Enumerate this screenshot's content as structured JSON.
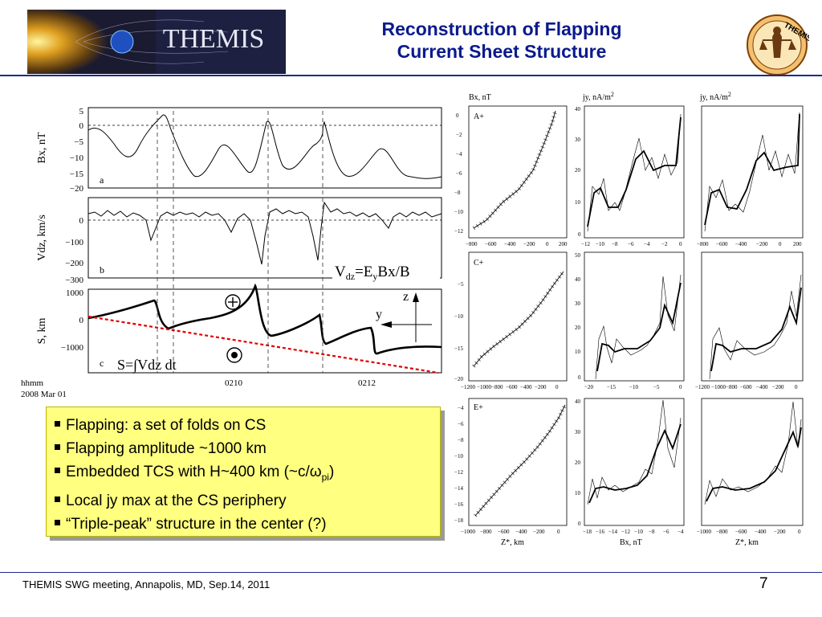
{
  "header": {
    "banner_text": "THEMIS",
    "title_line1": "Reconstruction of Flapping",
    "title_line2": "Current Sheet Structure",
    "logo_text": "THEMIS"
  },
  "left_panels": {
    "a": {
      "ylabel": "Bx, nT",
      "ticks": [
        "5",
        "0",
        "−5",
        "−10",
        "−15",
        "−20"
      ],
      "letter": "a"
    },
    "b": {
      "ylabel": "Vdz, km/s",
      "ticks": [
        "0",
        "−100",
        "−200",
        "−300"
      ],
      "letter": "b",
      "annotation_main": "V",
      "annotation_sub": "dz",
      "annotation_eq": "=E",
      "annotation_sub2": "y",
      "annotation_tail": "Bx/B"
    },
    "c": {
      "ylabel": "S, km",
      "ticks": [
        "1000",
        "0",
        "−1000"
      ],
      "letter": "c",
      "formula": "S=∫Vdz dt",
      "axis_z": "z",
      "axis_y": "y"
    },
    "time_ticks": [
      "0210",
      "0212"
    ],
    "time_label": "hhmm",
    "date_label": "2008 Mar 01"
  },
  "right_panels": {
    "col1_header": "Bx, nT",
    "col2_header": "jy, nA/m",
    "col2_sup": "2",
    "col3_header": "jy, nA/m",
    "col3_sup": "2",
    "row_labels": [
      "A+",
      "C+",
      "E+"
    ],
    "xlabel_col1": "Z*, km",
    "xlabel_col2": "Bx, nT",
    "xlabel_col3": "Z*, km",
    "row1": {
      "col1_x": [
        "−800",
        "−600",
        "−400",
        "−200",
        "0",
        "200"
      ],
      "col1_y": [
        "0",
        "−2",
        "−4",
        "−6",
        "−8",
        "−10",
        "−12"
      ],
      "col2_x": [
        "−12",
        "−10",
        "−8",
        "−6",
        "−4",
        "−2",
        "0"
      ],
      "col2_y": [
        "40",
        "30",
        "20",
        "10",
        "0"
      ],
      "col3_x": [
        "−800",
        "−600",
        "−400",
        "−200",
        "0",
        "200"
      ]
    },
    "row2": {
      "col1_x": [
        "−1200",
        "−1000",
        "−800",
        "−600",
        "−400",
        "−200",
        "0"
      ],
      "col1_y": [
        "−5",
        "−10",
        "−15",
        "−20"
      ],
      "col2_x": [
        "−20",
        "−15",
        "−10",
        "−5",
        "0"
      ],
      "col2_y": [
        "50",
        "40",
        "30",
        "20",
        "10",
        "0"
      ],
      "col3_x": [
        "−1200",
        "−1000",
        "−800",
        "−600",
        "−400",
        "−200",
        "0"
      ]
    },
    "row3": {
      "col1_x": [
        "−1000",
        "−800",
        "−600",
        "−400",
        "−200",
        "0"
      ],
      "col1_y": [
        "−4",
        "−6",
        "−8",
        "−10",
        "−12",
        "−14",
        "−16",
        "−18"
      ],
      "col2_x": [
        "−18",
        "−16",
        "−14",
        "−12",
        "−10",
        "−8",
        "−6",
        "−4"
      ],
      "col2_y": [
        "40",
        "30",
        "20",
        "10",
        "0"
      ],
      "col3_x": [
        "−1000",
        "−800",
        "−600",
        "−400",
        "−200",
        "0"
      ]
    }
  },
  "bullets": {
    "b1": "Flapping: a set of folds on CS",
    "b2": "Flapping amplitude ~1000 km",
    "b3_pre": "Embedded TCS with H~400 km (~c/ω",
    "b3_sub": "pi",
    "b3_post": ")",
    "b4": "Local jy max at the CS periphery",
    "b5": "“Triple-peak” structure in the center (?)"
  },
  "footer": {
    "text": "THEMIS SWG meeting, Annapolis, MD, Sep.14, 2011",
    "page": "7"
  },
  "colors": {
    "title": "#0a1a8c",
    "bullet_bg": "#ffff80",
    "red_line": "#e00000"
  }
}
